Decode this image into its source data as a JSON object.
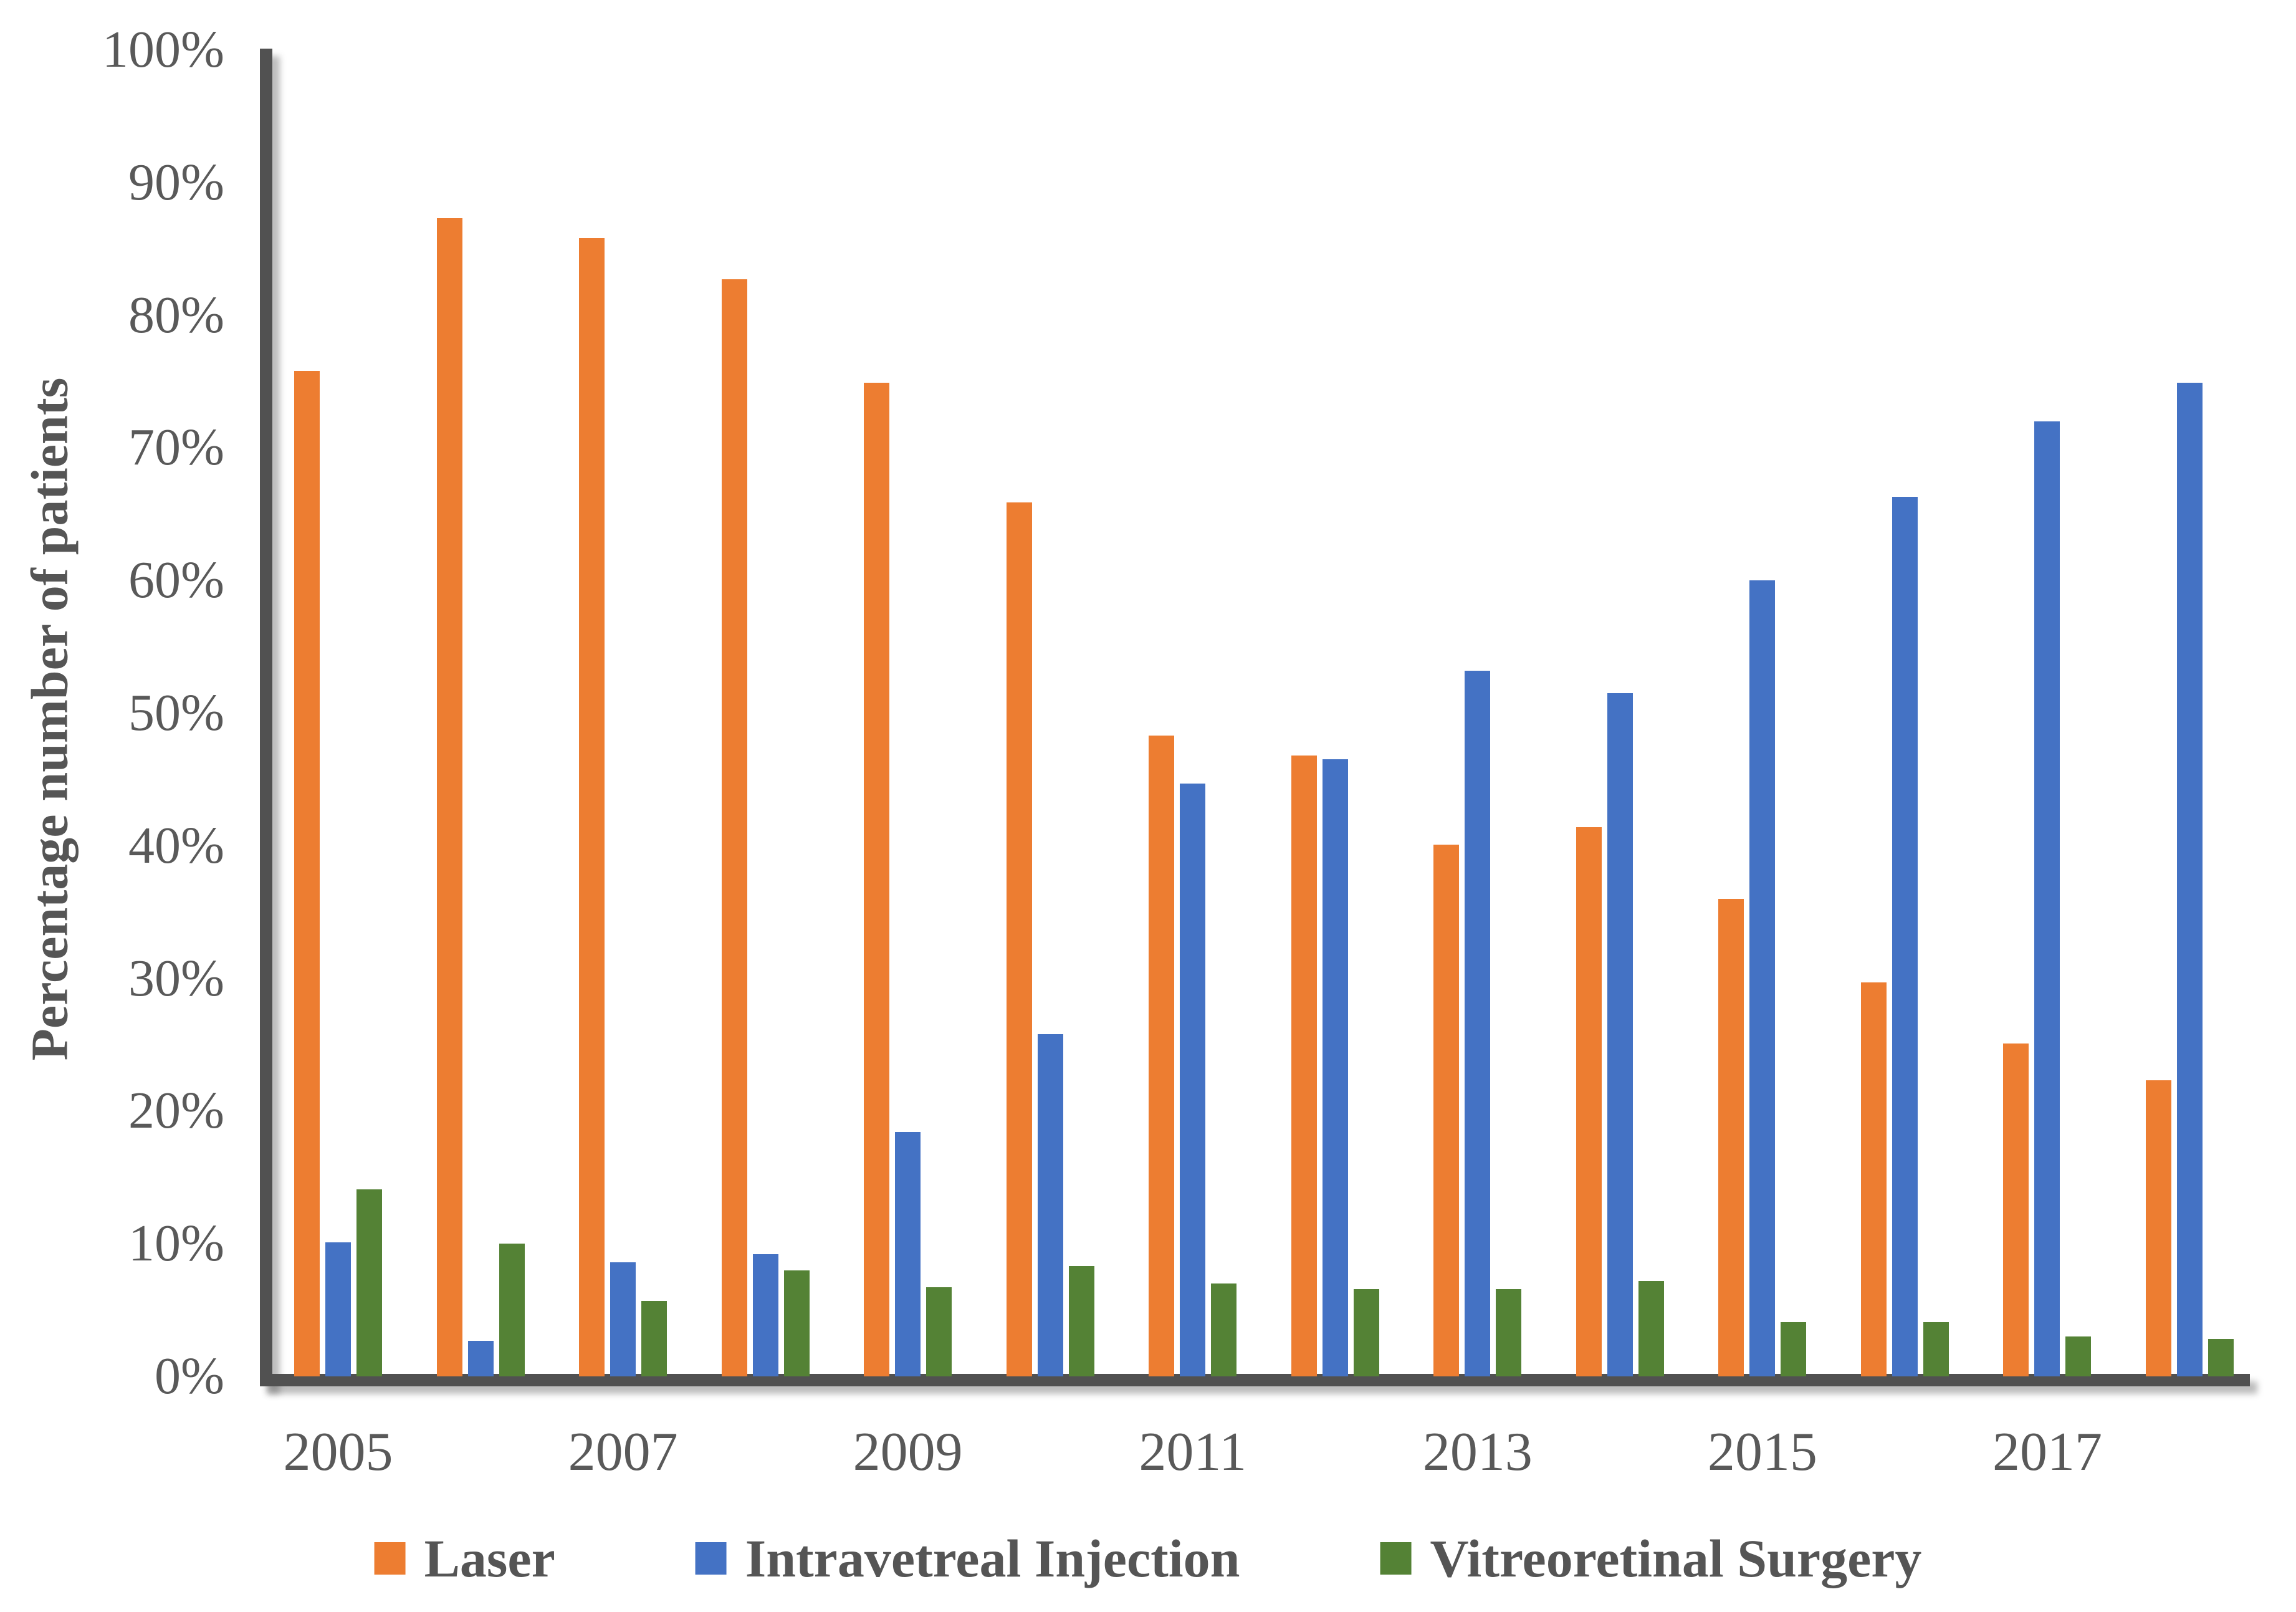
{
  "chart_data": {
    "type": "bar",
    "title": "",
    "xlabel": "",
    "ylabel": "Percentage number of patients",
    "categories": [
      2005,
      2006,
      2007,
      2008,
      2009,
      2010,
      2011,
      2012,
      2013,
      2014,
      2015,
      2016,
      2017,
      2018
    ],
    "series": [
      {
        "name": "Laser",
        "color": "#ED7D31",
        "values": [
          75.8,
          87.3,
          85.8,
          82.7,
          74.9,
          65.9,
          48.3,
          46.8,
          40.1,
          41.4,
          36.0,
          29.7,
          25.1,
          22.3
        ]
      },
      {
        "name": "Intravetreal Injection",
        "color": "#4472C4",
        "values": [
          10.1,
          2.7,
          8.6,
          9.2,
          18.4,
          25.8,
          44.7,
          46.5,
          53.2,
          51.5,
          60.0,
          66.3,
          72.0,
          74.9
        ]
      },
      {
        "name": "Vitreoretinal Surgery",
        "color": "#548235",
        "values": [
          14.1,
          10.0,
          5.7,
          8.0,
          6.7,
          8.3,
          7.0,
          6.6,
          6.6,
          7.2,
          4.1,
          4.1,
          3.0,
          2.8
        ]
      }
    ],
    "y_tick_labels": [
      "100%",
      "90%",
      "80%",
      "70%",
      "60%",
      "50%",
      "40%",
      "30%",
      "20%",
      "10%",
      "0%"
    ],
    "x_tick_labels": [
      "2005",
      "2007",
      "2009",
      "2011",
      "2013",
      "2015",
      "2017"
    ],
    "ylim": [
      0,
      100
    ],
    "grid": "off",
    "legend_position": "bottom",
    "axis_color": "#515151",
    "text_color": "#595959"
  }
}
